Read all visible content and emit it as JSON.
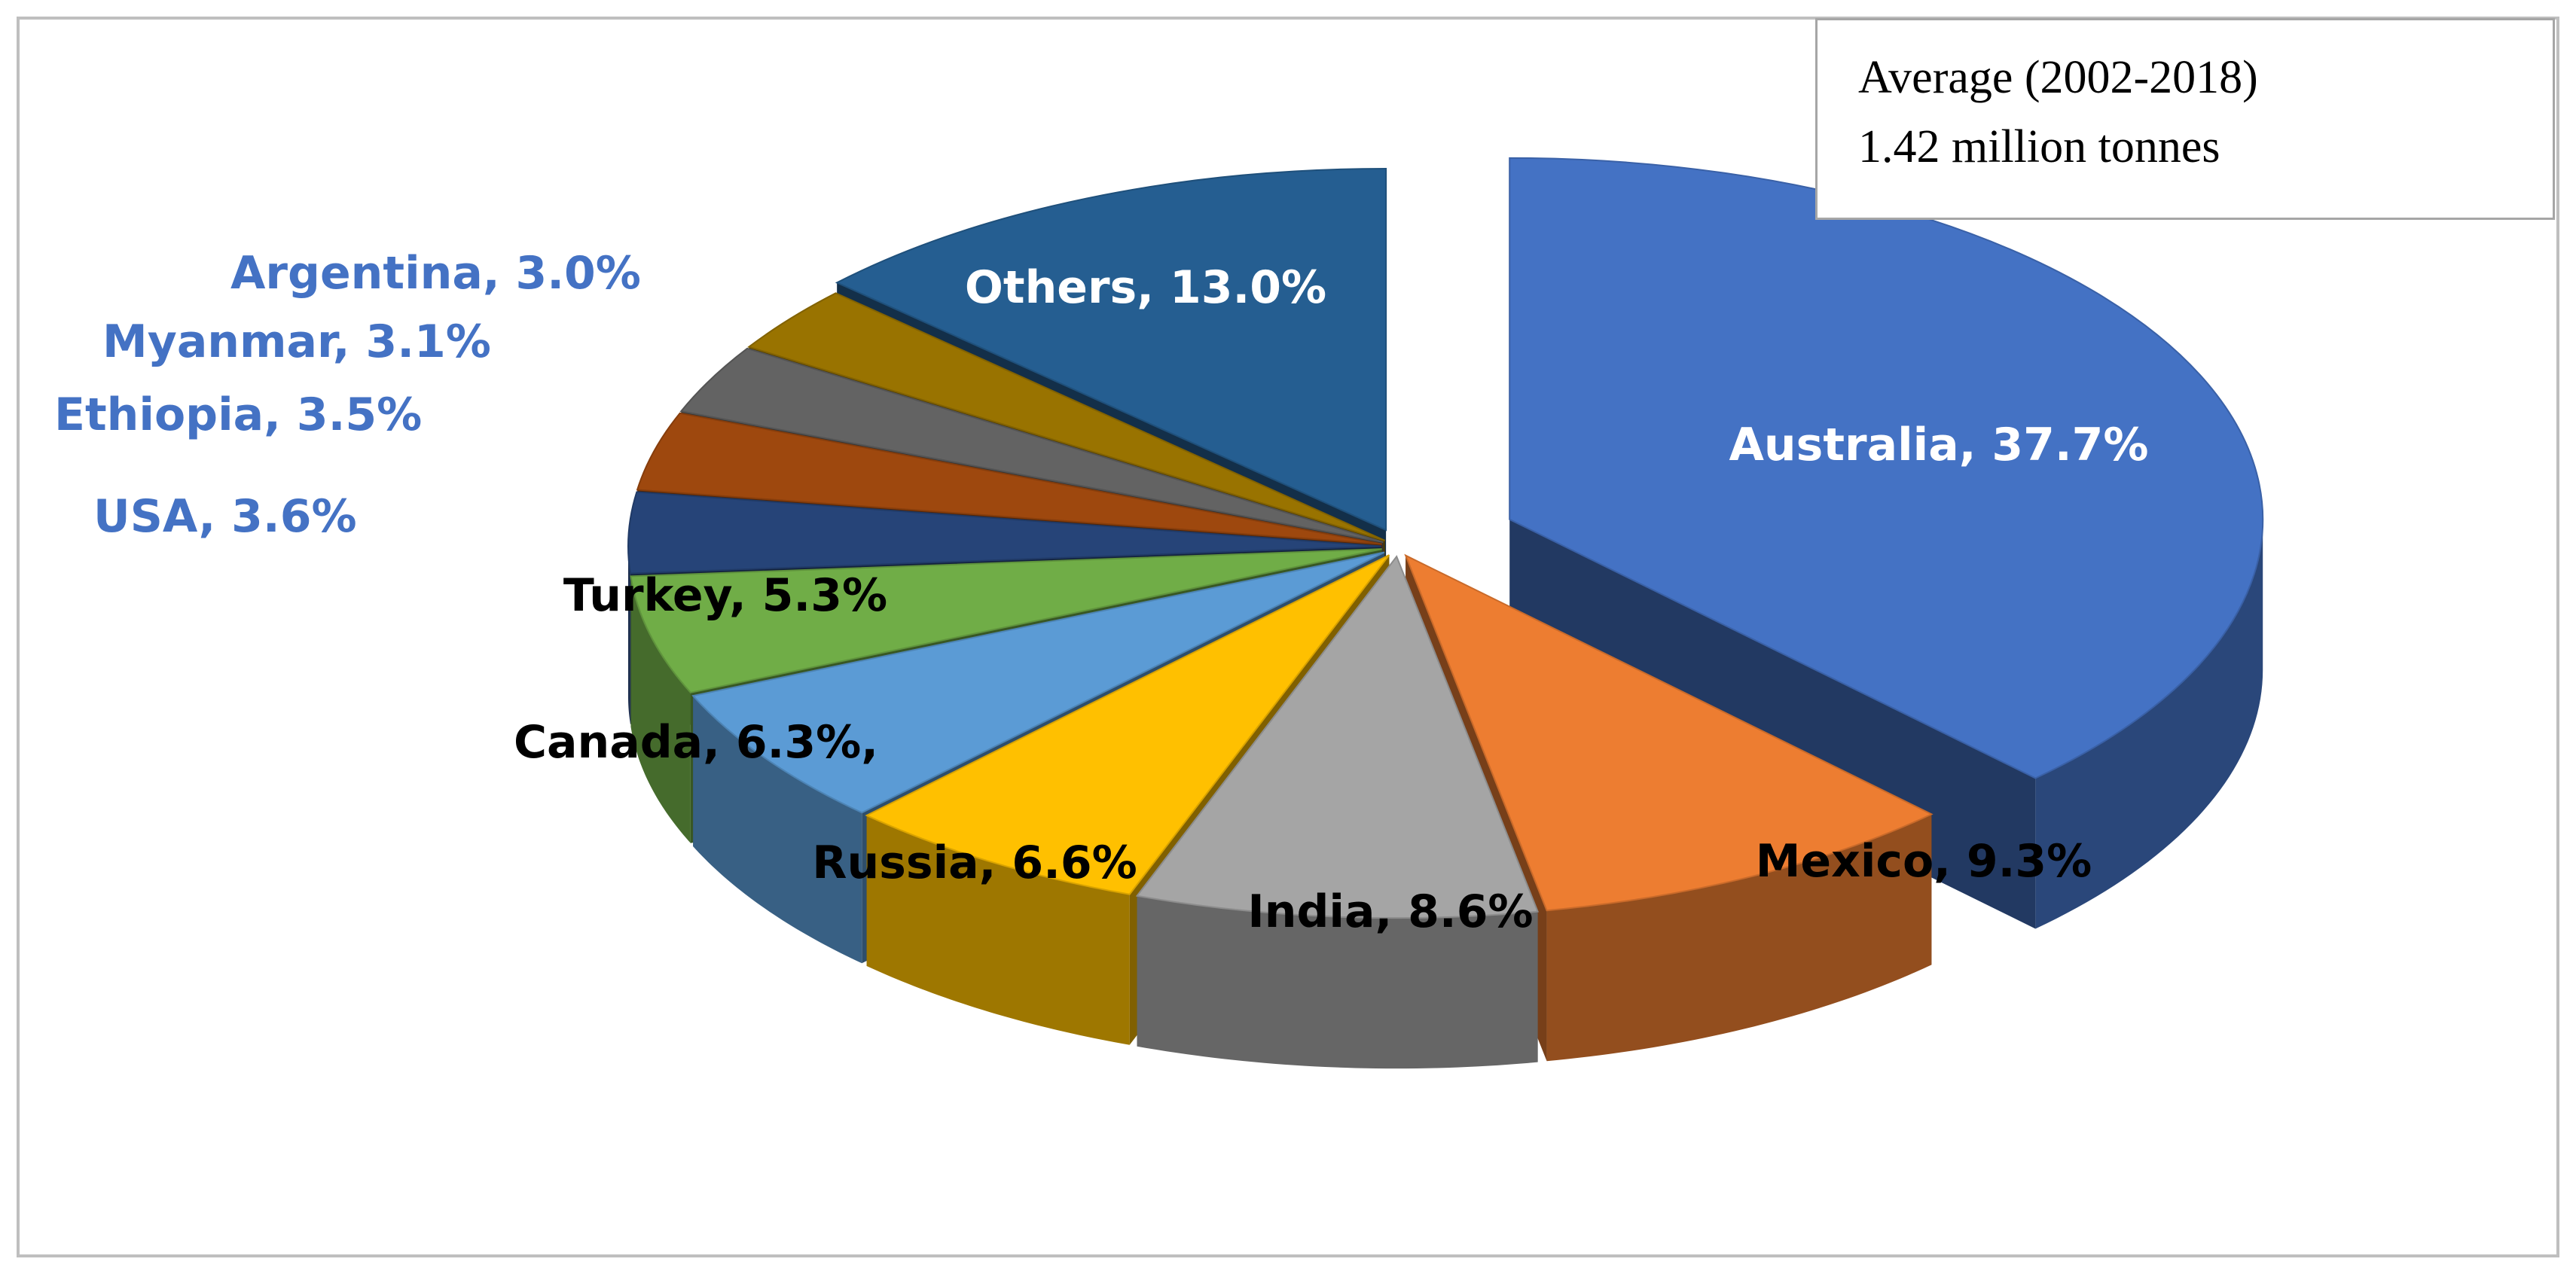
{
  "note": {
    "line1": "Average (2002-2018)",
    "line2": "1.42 million tonnes"
  },
  "chart_data": {
    "type": "pie",
    "style": "3d-exploded",
    "unit": "%",
    "slices": [
      {
        "name": "Australia",
        "value": 37.7,
        "label": "Australia, 37.7%",
        "color": "#4472c4",
        "label_color": "#ffffff"
      },
      {
        "name": "Mexico",
        "value": 9.3,
        "label": "Mexico, 9.3%",
        "color": "#ed7d31",
        "label_color": "#000000"
      },
      {
        "name": "India",
        "value": 8.6,
        "label": "India, 8.6%",
        "color": "#a5a5a5",
        "label_color": "#000000"
      },
      {
        "name": "Russia",
        "value": 6.6,
        "label": "Russia, 6.6%",
        "color": "#ffc000",
        "label_color": "#000000"
      },
      {
        "name": "Canada",
        "value": 6.3,
        "label": "Canada, 6.3%,",
        "color": "#5b9bd5",
        "label_color": "#000000"
      },
      {
        "name": "Turkey",
        "value": 5.3,
        "label": "Turkey, 5.3%",
        "color": "#70ad47",
        "label_color": "#000000"
      },
      {
        "name": "USA",
        "value": 3.6,
        "label": "USA, 3.6%",
        "color": "#264478",
        "label_color": "#4472c4"
      },
      {
        "name": "Ethiopia",
        "value": 3.5,
        "label": "Ethiopia, 3.5%",
        "color": "#9e480e",
        "label_color": "#4472c4"
      },
      {
        "name": "Myanmar",
        "value": 3.1,
        "label": "Myanmar, 3.1%",
        "color": "#636363",
        "label_color": "#4472c4"
      },
      {
        "name": "Argentina",
        "value": 3.0,
        "label": "Argentina, 3.0%",
        "color": "#997300",
        "label_color": "#4472c4"
      },
      {
        "name": "Others",
        "value": 13.0,
        "label": "Others, 13.0%",
        "color": "#255e91",
        "label_color": "#ffffff"
      }
    ]
  }
}
